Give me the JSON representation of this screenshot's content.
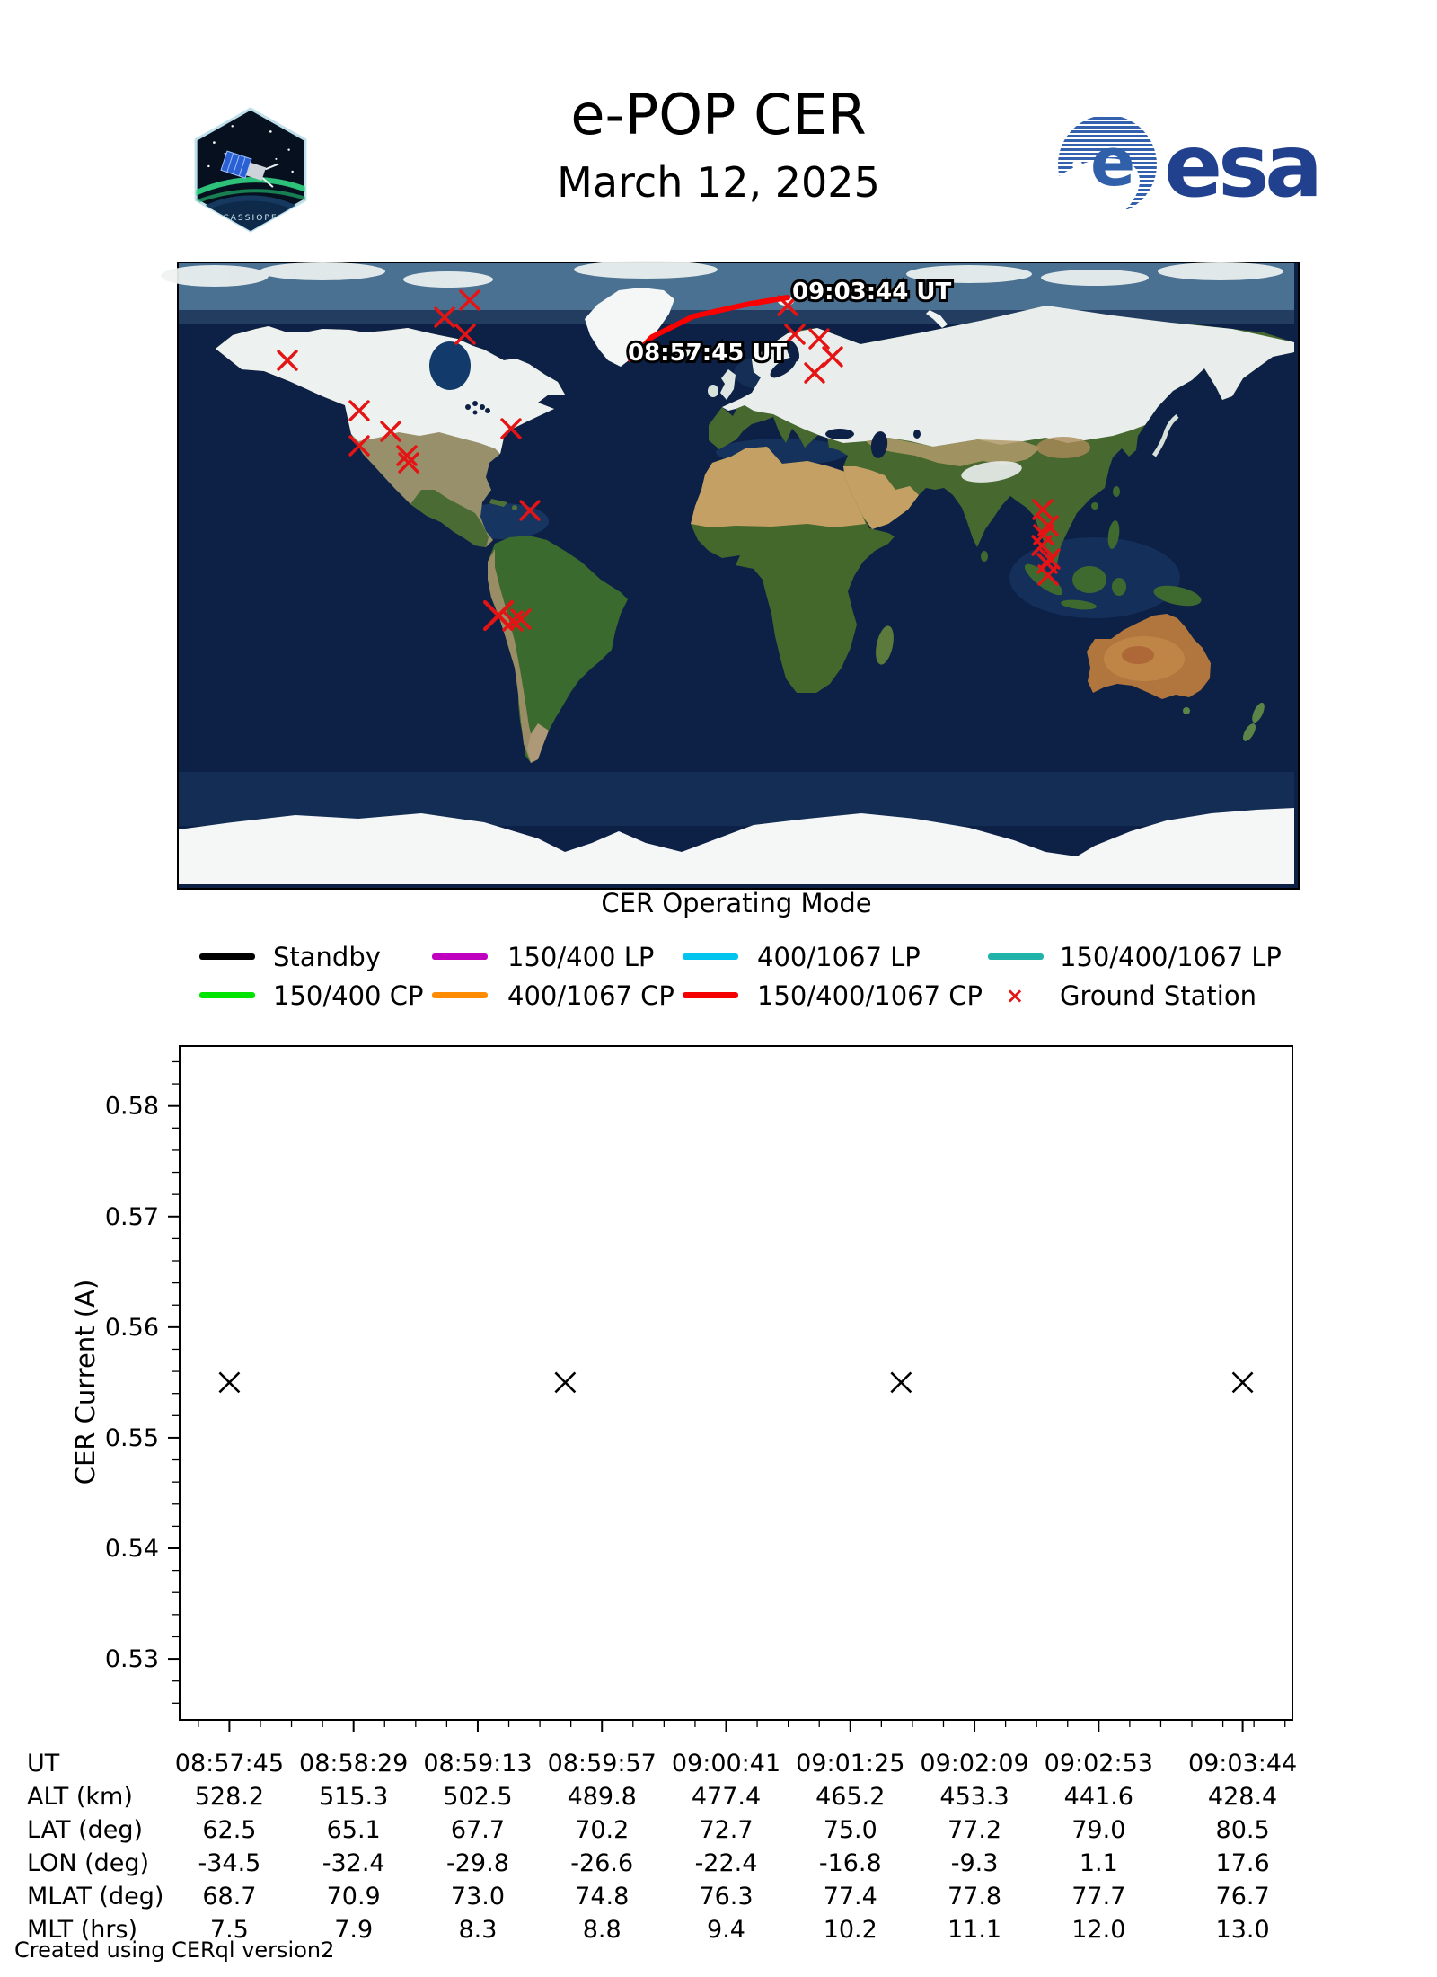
{
  "header": {
    "title": "e-POP CER",
    "date": "March 12, 2025",
    "patch_text": "CASSIOPE",
    "esa_text": "esa"
  },
  "map": {
    "start_label": "08:57:45 UT",
    "end_label": "09:03:44 UT",
    "track_color": "#fb0000",
    "station_color": "#e51414",
    "track": [
      [
        503,
        107
      ],
      [
        527,
        82
      ],
      [
        573,
        59
      ],
      [
        631,
        46
      ],
      [
        678,
        38
      ]
    ],
    "stations": [
      [
        121,
        108
      ],
      [
        201,
        164
      ],
      [
        236,
        187
      ],
      [
        201,
        203
      ],
      [
        254,
        214
      ],
      [
        256,
        222
      ],
      [
        370,
        184
      ],
      [
        391,
        275
      ],
      [
        324,
        41
      ],
      [
        296,
        60
      ],
      [
        319,
        79
      ],
      [
        678,
        47
      ],
      [
        686,
        79
      ],
      [
        713,
        84
      ],
      [
        728,
        104
      ],
      [
        708,
        122
      ],
      [
        962,
        274
      ],
      [
        968,
        292
      ],
      [
        963,
        302
      ],
      [
        961,
        314
      ],
      [
        970,
        329
      ],
      [
        967,
        334
      ],
      [
        968,
        347
      ],
      [
        356,
        392
      ],
      [
        372,
        398
      ],
      [
        381,
        396
      ]
    ]
  },
  "legend": {
    "title": "CER Operating Mode",
    "items": [
      {
        "label": "Standby",
        "color": "#000000",
        "type": "line"
      },
      {
        "label": "150/400 LP",
        "color": "#bf00bf",
        "type": "line"
      },
      {
        "label": "400/1067 LP",
        "color": "#00c4ee",
        "type": "line"
      },
      {
        "label": "150/400/1067 LP",
        "color": "#1fb3aa",
        "type": "line"
      },
      {
        "label": "150/400 CP",
        "color": "#00e400",
        "type": "line"
      },
      {
        "label": "400/1067 CP",
        "color": "#ff8c00",
        "type": "line"
      },
      {
        "label": "150/400/1067 CP",
        "color": "#f50000",
        "type": "line"
      },
      {
        "label": "Ground Station",
        "color": "#e51414",
        "type": "marker"
      }
    ]
  },
  "chart_data": {
    "type": "scatter",
    "title": "",
    "xlabel": "",
    "ylabel": "CER Current (A)",
    "marker": "x",
    "marker_color": "#000000",
    "grid": false,
    "ylim": [
      0.5244,
      0.5855
    ],
    "yticks": [
      0.53,
      0.54,
      0.55,
      0.56,
      0.57,
      0.58
    ],
    "ytick_labels": [
      "0.53",
      "0.54",
      "0.55",
      "0.56",
      "0.57",
      "0.58"
    ],
    "y_minor_step": 0.002,
    "xlim_s": [
      -17.95,
      376.95
    ],
    "xticks_s": [
      0,
      44,
      88,
      132,
      176,
      220,
      264,
      308,
      359
    ],
    "xtick_labels": [
      "08:57:45",
      "08:58:29",
      "08:59:13",
      "08:59:57",
      "09:00:41",
      "09:01:25",
      "09:02:09",
      "09:02:53",
      "09:03:44"
    ],
    "x_minor_step_s": 11,
    "points": [
      {
        "t_s": 0,
        "ut": "08:57:45",
        "current_a": 0.555
      },
      {
        "t_s": 119,
        "ut": "08:59:44",
        "current_a": 0.555
      },
      {
        "t_s": 238,
        "ut": "09:01:43",
        "current_a": 0.555
      },
      {
        "t_s": 359,
        "ut": "09:03:44",
        "current_a": 0.555
      }
    ]
  },
  "table": {
    "rows": [
      {
        "label": "UT",
        "values": [
          "08:57:45",
          "08:58:29",
          "08:59:13",
          "08:59:57",
          "09:00:41",
          "09:01:25",
          "09:02:09",
          "09:02:53",
          "09:03:44"
        ]
      },
      {
        "label": "ALT (km)",
        "values": [
          "528.2",
          "515.3",
          "502.5",
          "489.8",
          "477.4",
          "465.2",
          "453.3",
          "441.6",
          "428.4"
        ]
      },
      {
        "label": "LAT (deg)",
        "values": [
          "62.5",
          "65.1",
          "67.7",
          "70.2",
          "72.7",
          "75.0",
          "77.2",
          "79.0",
          "80.5"
        ]
      },
      {
        "label": "LON (deg)",
        "values": [
          "-34.5",
          "-32.4",
          "-29.8",
          "-26.6",
          "-22.4",
          "-16.8",
          "-9.3",
          "1.1",
          "17.6"
        ]
      },
      {
        "label": "MLAT (deg)",
        "values": [
          "68.7",
          "70.9",
          "73.0",
          "74.8",
          "76.3",
          "77.4",
          "77.8",
          "77.7",
          "76.7"
        ]
      },
      {
        "label": "MLT (hrs)",
        "values": [
          "7.5",
          "7.9",
          "8.3",
          "8.8",
          "9.4",
          "10.2",
          "11.1",
          "12.0",
          "13.0"
        ]
      }
    ]
  },
  "footer": "Created using CERql version2"
}
